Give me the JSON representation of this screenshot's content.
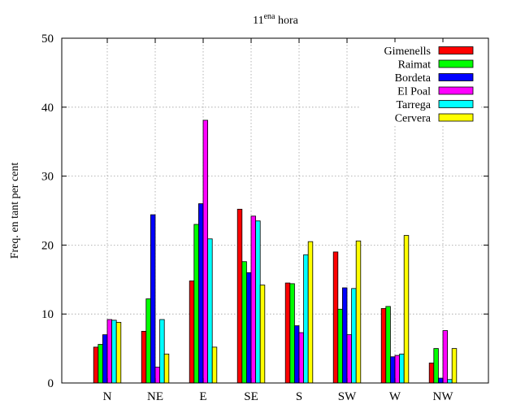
{
  "chart_data": {
    "type": "bar",
    "title": {
      "base": "11",
      "sup": "ena",
      "rest": " hora"
    },
    "xlabel": "",
    "ylabel": "Freq. en tant per cent",
    "ylim": [
      0,
      50
    ],
    "yticks": [
      "0",
      "10",
      "20",
      "30",
      "40",
      "50"
    ],
    "grid": true,
    "legend_position": "top-right",
    "categories": [
      "N",
      "NE",
      "E",
      "SE",
      "S",
      "SW",
      "W",
      "NW"
    ],
    "series": [
      {
        "name": "Gimenells",
        "color": "#ff0000",
        "values": [
          5.2,
          7.5,
          14.8,
          25.2,
          14.5,
          19.0,
          10.8,
          2.9
        ]
      },
      {
        "name": "Raimat",
        "color": "#00ff00",
        "values": [
          5.6,
          12.2,
          23.0,
          17.6,
          14.4,
          10.7,
          11.1,
          5.0
        ]
      },
      {
        "name": "Bordeta",
        "color": "#0000ff",
        "values": [
          7.0,
          24.4,
          26.0,
          16.0,
          8.3,
          13.8,
          3.8,
          0.7
        ]
      },
      {
        "name": "El Poal",
        "color": "#ff00ff",
        "values": [
          9.2,
          2.3,
          38.1,
          24.2,
          7.3,
          7.0,
          4.0,
          7.6
        ]
      },
      {
        "name": "Tarrega",
        "color": "#00ffff",
        "values": [
          9.1,
          9.2,
          20.9,
          23.5,
          18.6,
          13.7,
          4.2,
          0.5
        ]
      },
      {
        "name": "Cervera",
        "color": "#ffff00",
        "values": [
          8.8,
          4.2,
          5.2,
          14.2,
          20.5,
          20.6,
          21.4,
          5.0
        ]
      }
    ]
  }
}
